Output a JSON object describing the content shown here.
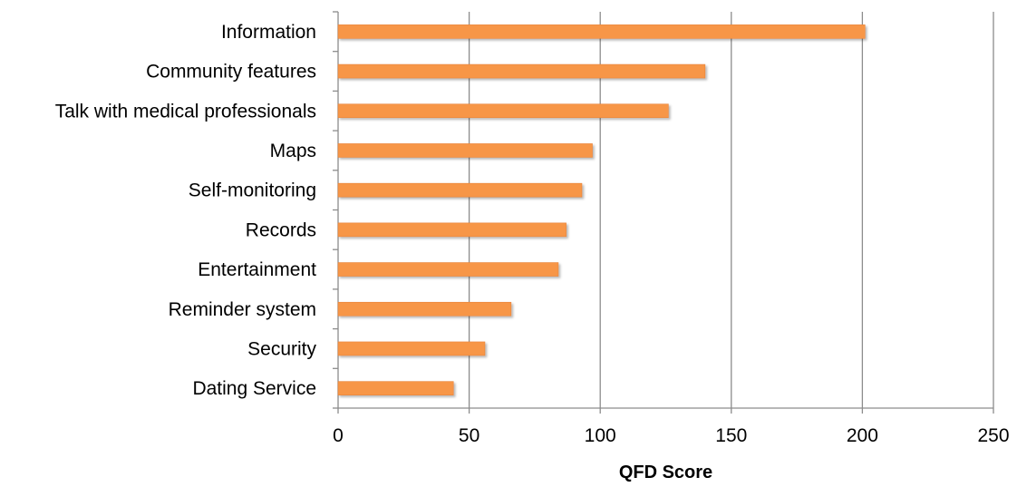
{
  "chart_data": {
    "type": "bar",
    "orientation": "horizontal",
    "title": "",
    "xlabel": "QFD Score",
    "ylabel": "",
    "xlim": [
      0,
      250
    ],
    "xticks": [
      0,
      50,
      100,
      150,
      200,
      250
    ],
    "grid": true,
    "legend": "none",
    "categories": [
      "Information",
      "Community features",
      "Talk with medical professionals",
      "Maps",
      "Self-monitoring",
      "Records",
      "Entertainment",
      "Reminder system",
      "Security",
      "Dating Service"
    ],
    "values": [
      201,
      140,
      126,
      97,
      93,
      87,
      84,
      66,
      56,
      44
    ],
    "colors": {
      "bar": "#F79646",
      "bar_edge": "#E8833A",
      "grid": "#8C8C8C",
      "axis": "#8C8C8C"
    }
  }
}
